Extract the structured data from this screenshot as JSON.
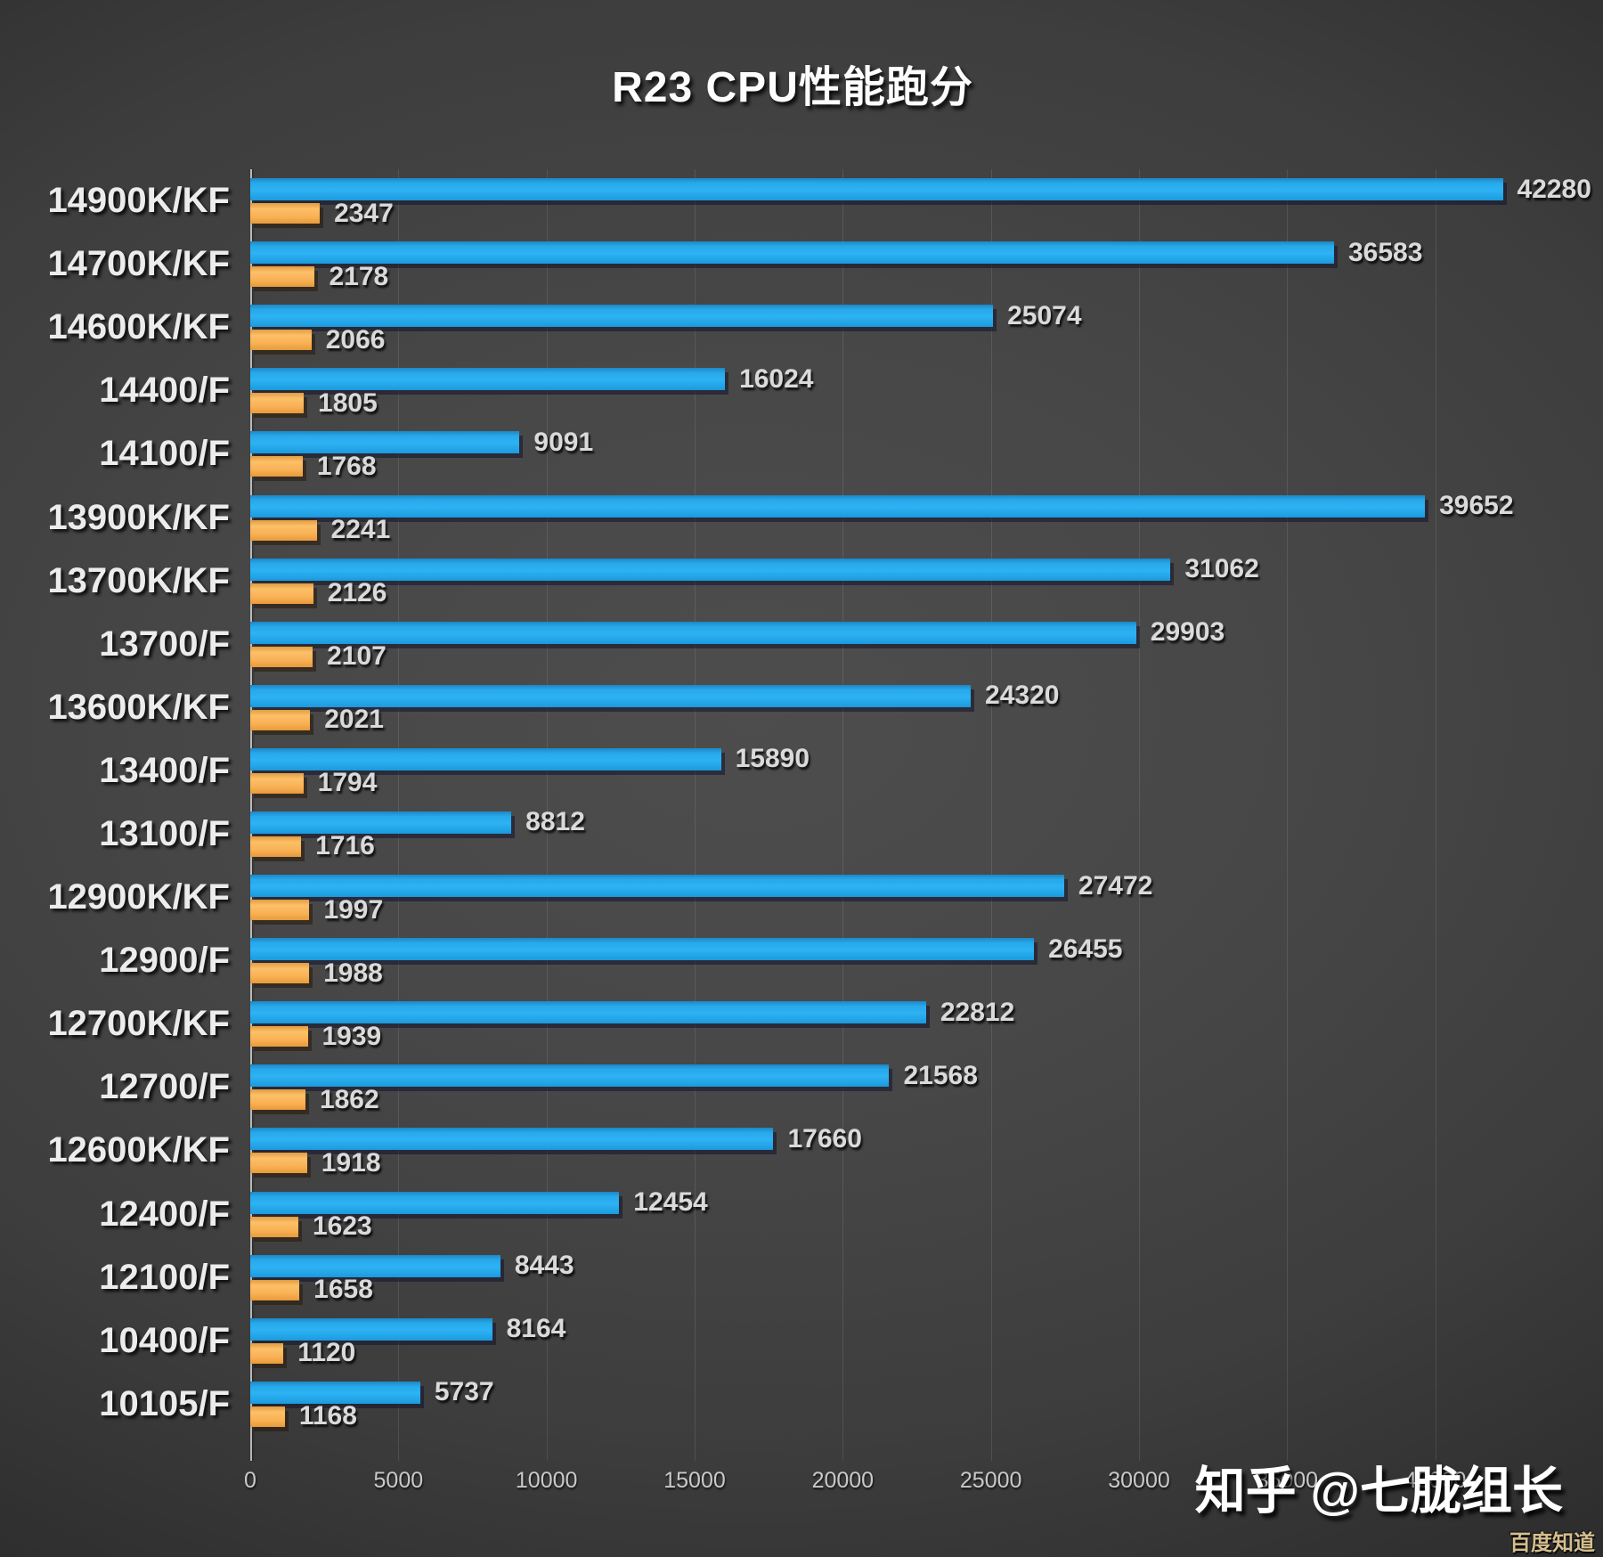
{
  "chart_data": {
    "type": "bar",
    "orientation": "horizontal",
    "title": "R23 CPU性能跑分",
    "categories": [
      "14900K/KF",
      "14700K/KF",
      "14600K/KF",
      "14400/F",
      "14100/F",
      "13900K/KF",
      "13700K/KF",
      "13700/F",
      "13600K/KF",
      "13400/F",
      "13100/F",
      "12900K/KF",
      "12900/F",
      "12700K/KF",
      "12700/F",
      "12600K/KF",
      "12400/F",
      "12100/F",
      "10400/F",
      "10105/F"
    ],
    "series": [
      {
        "name": "blue",
        "color": "#29abe9",
        "values": [
          42280,
          36583,
          25074,
          16024,
          9091,
          39652,
          31062,
          29903,
          24320,
          15890,
          8812,
          27472,
          26455,
          22812,
          21568,
          17660,
          12454,
          8443,
          8164,
          5737
        ]
      },
      {
        "name": "orange",
        "color": "#f9b054",
        "values": [
          2347,
          2178,
          2066,
          1805,
          1768,
          2241,
          2126,
          2107,
          2021,
          1794,
          1716,
          1997,
          1988,
          1939,
          1862,
          1918,
          1623,
          1658,
          1120,
          1168
        ]
      }
    ],
    "x_ticks": [
      0,
      5000,
      10000,
      15000,
      20000,
      25000,
      30000,
      35000,
      40000
    ],
    "xlim": [
      0,
      45000
    ],
    "xlabel": "",
    "ylabel": "",
    "grid": true,
    "legend": "none",
    "background": "dark-gray-radial-gradient"
  },
  "watermarks": {
    "zhihu": "知乎 @七胧组长",
    "corner": "百度知道"
  },
  "colors": {
    "bar_blue": "#29abe9",
    "bar_orange": "#f9b054",
    "title_text": "#fdfdfd",
    "label_text": "#ececec",
    "tick_text": "#c9c9c9",
    "corner_watermark": "#d5bf8f"
  }
}
